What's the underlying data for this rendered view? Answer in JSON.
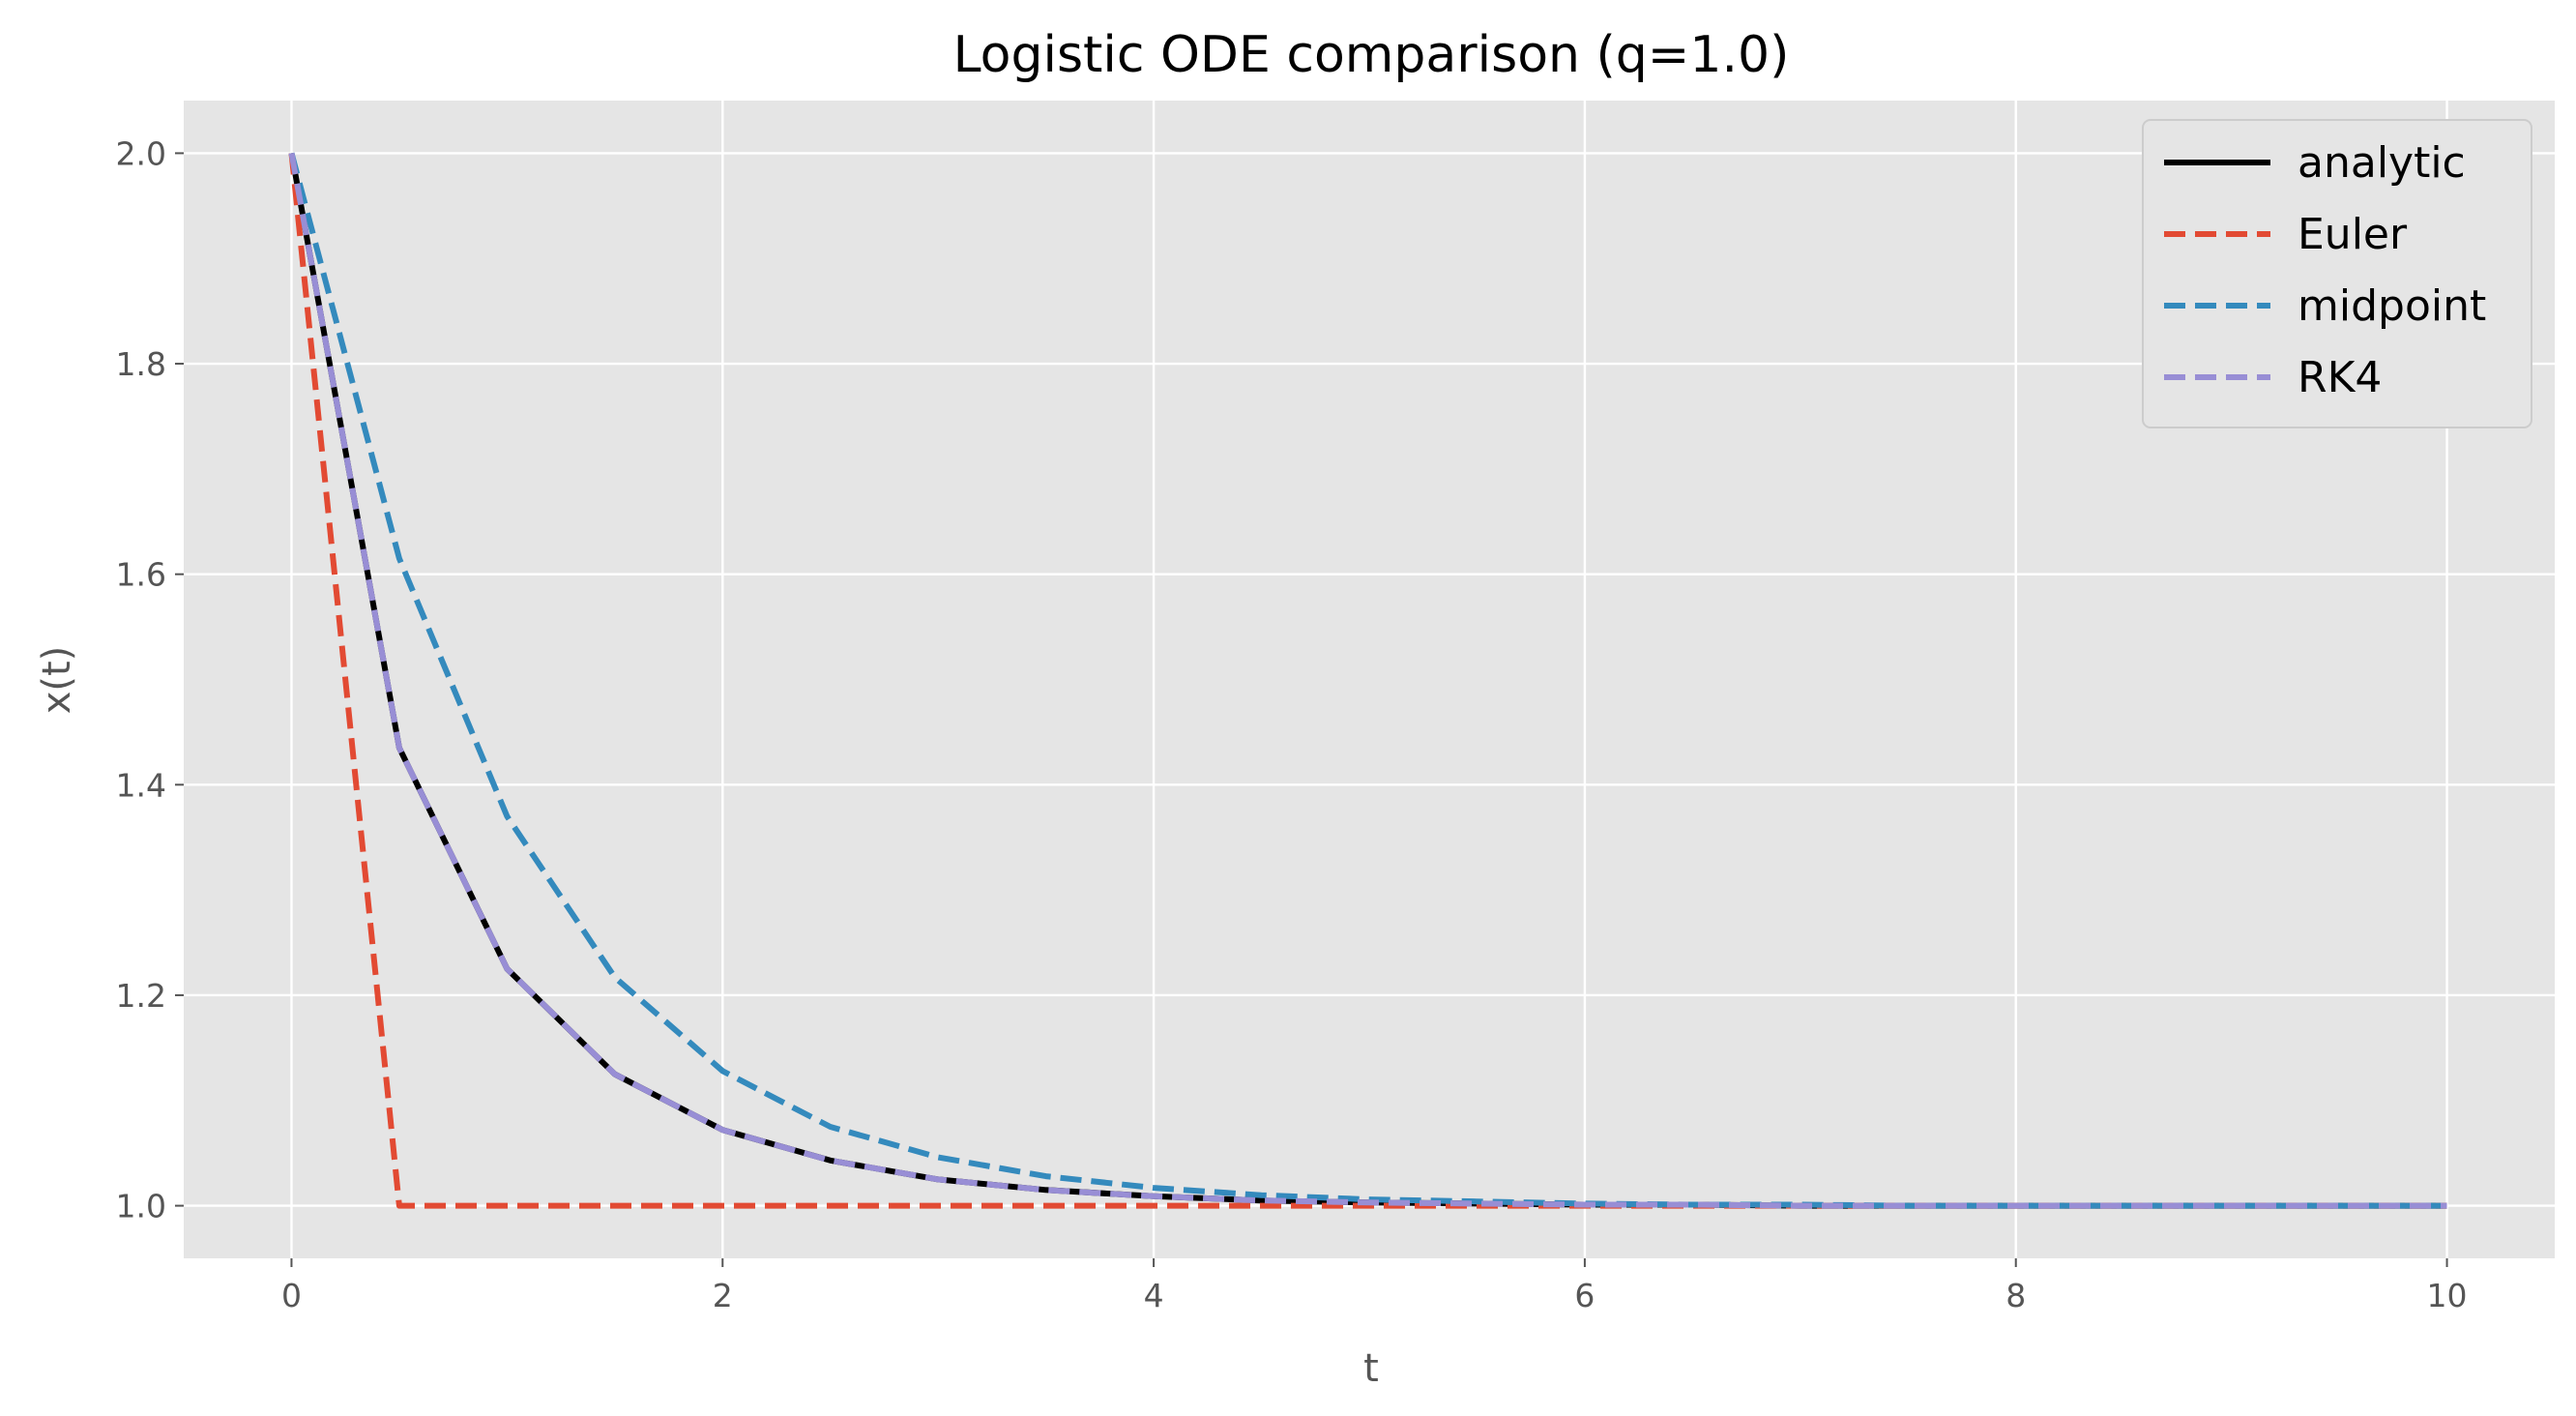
{
  "chart_data": {
    "type": "line",
    "title": "Logistic ODE comparison (q=1.0)",
    "xlabel": "t",
    "ylabel": "x(t)",
    "xlim": [
      -0.5,
      10.5
    ],
    "ylim": [
      0.95,
      2.05
    ],
    "xticks": [
      0,
      2,
      4,
      6,
      8,
      10
    ],
    "xtick_labels": [
      "0",
      "2",
      "4",
      "6",
      "8",
      "10"
    ],
    "yticks": [
      1.0,
      1.2,
      1.4,
      1.6,
      1.8,
      2.0
    ],
    "ytick_labels": [
      "1.0",
      "1.2",
      "1.4",
      "1.6",
      "1.8",
      "2.0"
    ],
    "grid": true,
    "legend_position": "top-right",
    "background": "#e5e5e5",
    "series": [
      {
        "name": "analytic",
        "color": "#000000",
        "dash": "solid",
        "x": [
          0,
          0.5,
          1,
          1.5,
          2,
          2.5,
          3,
          3.5,
          4,
          4.5,
          5,
          5.5,
          6,
          6.5,
          7,
          7.5,
          8,
          8.5,
          9,
          9.5,
          10
        ],
        "y": [
          2.0,
          1.435,
          1.225,
          1.125,
          1.072,
          1.043,
          1.025,
          1.015,
          1.009,
          1.005,
          1.003,
          1.002,
          1.001,
          1.001,
          1.0,
          1.0,
          1.0,
          1.0,
          1.0,
          1.0,
          1.0
        ]
      },
      {
        "name": "Euler",
        "color": "#e24a33",
        "dash": "dashed",
        "x": [
          0,
          0.5,
          1,
          1.5,
          2,
          2.5,
          3,
          3.5,
          4,
          4.5,
          5,
          5.5,
          6,
          6.5,
          7,
          7.5,
          8,
          8.5,
          9,
          9.5,
          10
        ],
        "y": [
          2.0,
          1.0,
          1.0,
          1.0,
          1.0,
          1.0,
          1.0,
          1.0,
          1.0,
          1.0,
          1.0,
          1.0,
          1.0,
          1.0,
          1.0,
          1.0,
          1.0,
          1.0,
          1.0,
          1.0,
          1.0
        ]
      },
      {
        "name": "midpoint",
        "color": "#348abd",
        "dash": "dashed",
        "x": [
          0,
          0.5,
          1,
          1.5,
          2,
          2.5,
          3,
          3.5,
          4,
          4.5,
          5,
          5.5,
          6,
          6.5,
          7,
          7.5,
          8,
          8.5,
          9,
          9.5,
          10
        ],
        "y": [
          2.0,
          1.615,
          1.37,
          1.217,
          1.128,
          1.075,
          1.046,
          1.028,
          1.017,
          1.01,
          1.006,
          1.004,
          1.002,
          1.001,
          1.001,
          1.0,
          1.0,
          1.0,
          1.0,
          1.0,
          1.0
        ]
      },
      {
        "name": "RK4",
        "color": "#988ed5",
        "dash": "dashed",
        "x": [
          0,
          0.5,
          1,
          1.5,
          2,
          2.5,
          3,
          3.5,
          4,
          4.5,
          5,
          5.5,
          6,
          6.5,
          7,
          7.5,
          8,
          8.5,
          9,
          9.5,
          10
        ],
        "y": [
          2.0,
          1.435,
          1.225,
          1.125,
          1.072,
          1.043,
          1.025,
          1.015,
          1.009,
          1.005,
          1.003,
          1.002,
          1.001,
          1.001,
          1.0,
          1.0,
          1.0,
          1.0,
          1.0,
          1.0,
          1.0
        ]
      }
    ]
  }
}
